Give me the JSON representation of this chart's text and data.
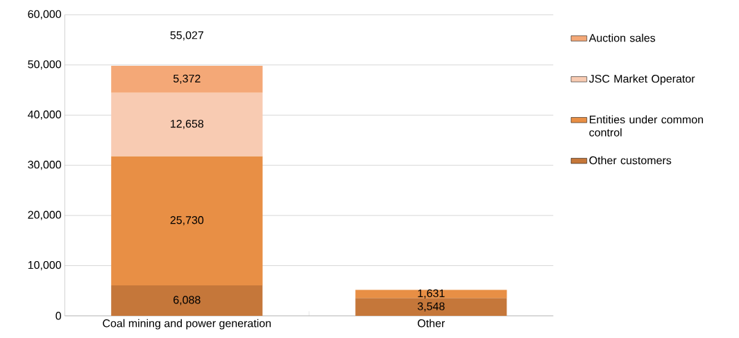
{
  "chart_data": {
    "type": "bar",
    "stacked": true,
    "categories": [
      "Coal mining and power generation",
      "Other"
    ],
    "series": [
      {
        "name": "Other customers",
        "color": "#c5773a",
        "values": [
          6088,
          3548
        ],
        "value_labels": [
          "6,088",
          "3,548"
        ]
      },
      {
        "name": "Entities under common control",
        "color": "#e88f45",
        "values": [
          25730,
          1631
        ],
        "value_labels": [
          "25,730",
          "1,631"
        ]
      },
      {
        "name": "JSC Market Operator",
        "color": "#f8cbb2",
        "values": [
          12658,
          null
        ],
        "value_labels": [
          "12,658",
          null
        ]
      },
      {
        "name": "Auction sales",
        "color": "#f4a877",
        "values": [
          5372,
          null
        ],
        "value_labels": [
          "5,372",
          null
        ]
      }
    ],
    "annotations": [
      "55,027"
    ],
    "ylim": [
      0,
      60000
    ],
    "yticks": [
      {
        "value": 0,
        "label": "0"
      },
      {
        "value": 10000,
        "label": "10,000"
      },
      {
        "value": 20000,
        "label": "20,000"
      },
      {
        "value": 30000,
        "label": "30,000"
      },
      {
        "value": 40000,
        "label": "40,000"
      },
      {
        "value": 50000,
        "label": "50,000"
      },
      {
        "value": 60000,
        "label": "60,000"
      }
    ],
    "grid": "y",
    "legend": "right"
  }
}
